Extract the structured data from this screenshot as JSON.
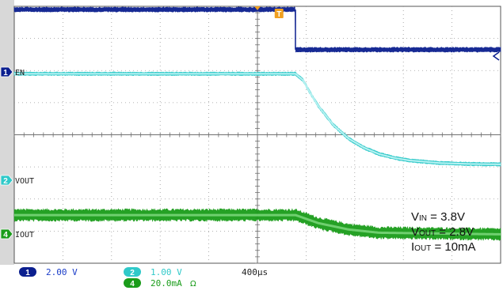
{
  "chart_data": {
    "type": "line",
    "title": "",
    "xlabel": "",
    "ylabel": "",
    "time_per_div": "400µs",
    "x_unit": "µs",
    "x_range": [
      -2000,
      1200
    ],
    "grid": true,
    "x_divisions": 10,
    "y_divisions": 8,
    "trigger_marker": "T",
    "trigger_time": 0,
    "series": [
      {
        "name": "EN",
        "channel": 1,
        "scale": "2.00 V",
        "color": "#0b1f8f",
        "marker_label": "1",
        "x": [
          -2000,
          -150,
          -150,
          1200
        ],
        "y_div": [
          3.9,
          3.9,
          2.65,
          2.65
        ],
        "noise_div": 0.08
      },
      {
        "name": "VOUT",
        "channel": 2,
        "scale": "1.00 V",
        "color": "#2fc9c9",
        "marker_label": "2",
        "x": [
          -2000,
          -150,
          -100,
          -50,
          0,
          100,
          200,
          300,
          400,
          500,
          600,
          800,
          1000,
          1200
        ],
        "y_div": [
          1.9,
          1.9,
          1.7,
          1.28,
          0.9,
          0.3,
          -0.12,
          -0.4,
          -0.6,
          -0.72,
          -0.8,
          -0.88,
          -0.91,
          -0.92
        ],
        "noise_div": 0.06
      },
      {
        "name": "IOUT",
        "channel": 4,
        "scale": "20.0mA",
        "color": "#1a9c1a",
        "marker_label": "4",
        "x": [
          -2000,
          -150,
          0,
          200,
          400,
          1200
        ],
        "y_div": [
          -2.5,
          -2.5,
          -2.75,
          -2.95,
          -3.05,
          -3.1
        ],
        "noise_div": 0.2
      }
    ],
    "annotations": [
      {
        "text": "VIN = 3.8V",
        "main": "V",
        "sub": "IN",
        "rest": " = 3.8V"
      },
      {
        "text": "VOUT = 2.8V",
        "main": "V",
        "sub": "OUT",
        "rest": " = 2.8V"
      },
      {
        "text": "IOUT = 10mA",
        "main": "I",
        "sub": "OUT",
        "rest": " = 10mA"
      }
    ]
  },
  "colors": {
    "grid": "#9a9a9a",
    "frame": "#555555",
    "ch1": "#0b1f8f",
    "ch2": "#2fc9c9",
    "ch4": "#1a9c1a",
    "trigger": "#f0a020"
  }
}
